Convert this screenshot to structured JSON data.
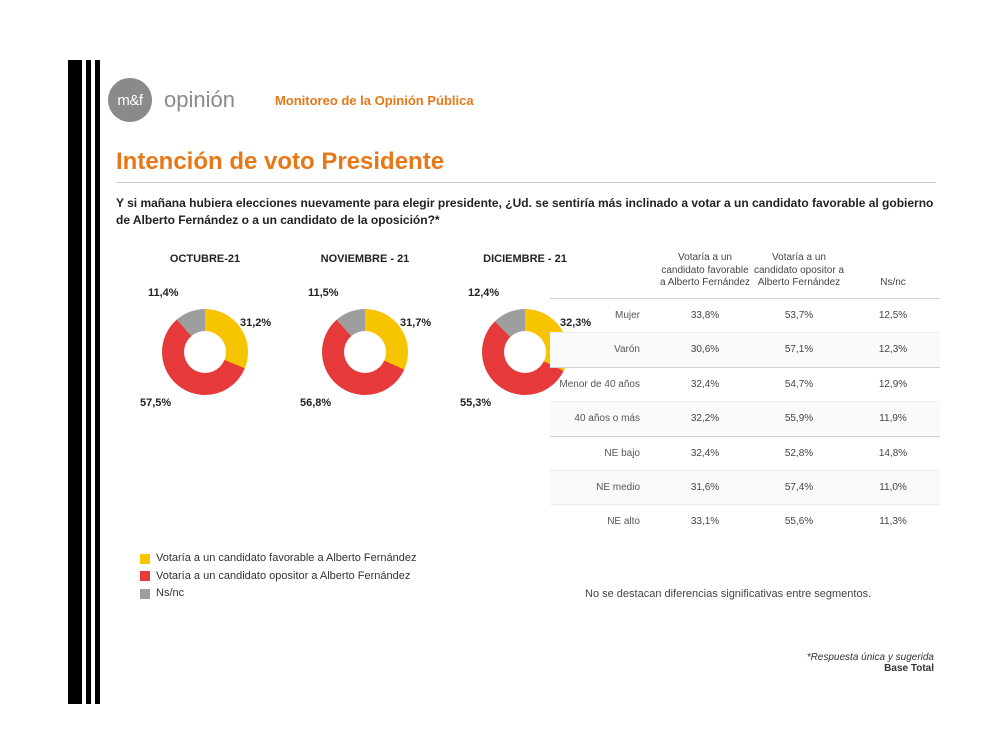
{
  "brand": {
    "mark": "m&f",
    "word": "opinión",
    "tagline": "Monitoreo de la Opinión Pública"
  },
  "title": "Intención de voto Presidente",
  "question": "Y si mañana hubiera elecciones nuevamente para elegir presidente, ¿Ud. se sentiría más inclinado a votar a un candidato favorable al gobierno de Alberto Fernández o a un candidato de la oposición?*",
  "colors": {
    "favorable": "#f7c400",
    "opositor": "#e6393a",
    "nsnc": "#9e9e9e",
    "accent": "#e77818"
  },
  "charts": [
    {
      "month": "OCTUBRE-21",
      "slices": {
        "favorable": 31.2,
        "opositor": 57.5,
        "nsnc": 11.4
      },
      "labels": {
        "favorable": "31,2%",
        "opositor": "57,5%",
        "nsnc": "11,4%"
      }
    },
    {
      "month": "NOVIEMBRE - 21",
      "slices": {
        "favorable": 31.7,
        "opositor": 56.8,
        "nsnc": 11.5
      },
      "labels": {
        "favorable": "31,7%",
        "opositor": "56,8%",
        "nsnc": "11,5%"
      }
    },
    {
      "month": "DICIEMBRE - 21",
      "slices": {
        "favorable": 32.3,
        "opositor": 55.3,
        "nsnc": 12.4
      },
      "labels": {
        "favorable": "32,3%",
        "opositor": "55,3%",
        "nsnc": "12,4%"
      }
    }
  ],
  "legend": {
    "favorable": "Votaría a un candidato favorable a Alberto Fernández",
    "opositor": "Votaría a un candidato opositor a Alberto Fernández",
    "nsnc": "Ns/nc"
  },
  "table": {
    "headers": {
      "c1": "Votaría a un candidato favorable a Alberto Fernández",
      "c2": "Votaría a un candidato opositor a Alberto Fernández",
      "c3": "Ns/nc"
    },
    "blocks": [
      {
        "rows": [
          {
            "label": "Mujer",
            "v": [
              "33,8%",
              "53,7%",
              "12,5%"
            ]
          },
          {
            "label": "Varón",
            "v": [
              "30,6%",
              "57,1%",
              "12,3%"
            ]
          }
        ]
      },
      {
        "rows": [
          {
            "label": "Menor de 40 años",
            "v": [
              "32,4%",
              "54,7%",
              "12,9%"
            ]
          },
          {
            "label": "40 años o más",
            "v": [
              "32,2%",
              "55,9%",
              "11,9%"
            ]
          }
        ]
      },
      {
        "rows": [
          {
            "label": "NE bajo",
            "v": [
              "32,4%",
              "52,8%",
              "14,8%"
            ]
          },
          {
            "label": "NE medio",
            "v": [
              "31,6%",
              "57,4%",
              "11,0%"
            ]
          },
          {
            "label": "NE alto",
            "v": [
              "33,1%",
              "55,6%",
              "11,3%"
            ]
          }
        ]
      }
    ],
    "note": "No se destacan diferencias significativas entre segmentos."
  },
  "footer": {
    "line1": "*Respuesta única y sugerida",
    "line2": "Base Total"
  }
}
